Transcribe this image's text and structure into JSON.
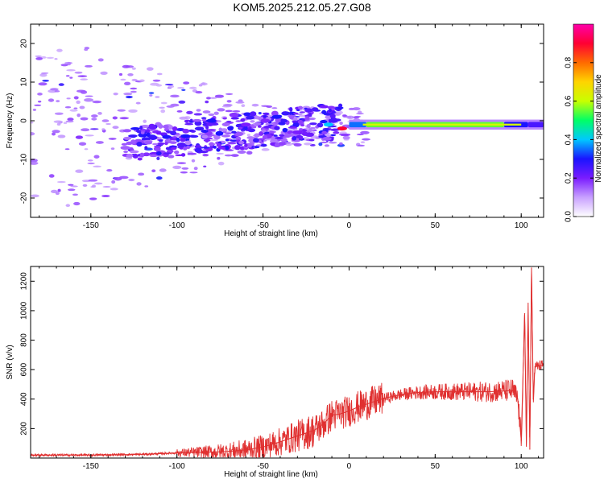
{
  "title": "KOM5.2025.212.05.27.G08",
  "chart_data": [
    {
      "type": "heatmap",
      "xlabel": "Height of straight line (km)",
      "ylabel": "Frequency (Hz)",
      "xlim": [
        -185,
        113
      ],
      "ylim": [
        -25,
        25
      ],
      "xticks": [
        -150,
        -100,
        -50,
        0,
        50,
        100
      ],
      "yticks": [
        -20,
        -10,
        0,
        10,
        20
      ],
      "colorbar": {
        "label": "Normalized spectral amplitude",
        "range": [
          0,
          1
        ],
        "ticks": [
          "0.0",
          "0.2",
          "0.4",
          "0.6",
          "0.8"
        ],
        "colors": [
          "#ffffff",
          "#c8a0ff",
          "#7a1cff",
          "#1a14ff",
          "#00c8ff",
          "#00ff66",
          "#c8ff00",
          "#ffd400",
          "#ff6a00",
          "#ff0033",
          "#ff00aa"
        ]
      },
      "main_band": {
        "x_start": 0,
        "x_end": 113,
        "frequency": -1,
        "note_segments": [
          {
            "x": [
              0,
              10
            ],
            "amplitude": 0.35
          },
          {
            "x": [
              10,
              90
            ],
            "amplitude": 0.55
          },
          {
            "x": [
              90,
              104
            ],
            "amplitude": 0.3
          },
          {
            "x": [
              104,
              113
            ],
            "amplitude": 0.25
          }
        ]
      },
      "features": [
        {
          "x": -95,
          "f": -4,
          "amplitude": 0.3
        },
        {
          "x": -80,
          "f": 0,
          "amplitude": 0.3
        },
        {
          "x": -60,
          "f": -1,
          "amplitude": 0.2
        },
        {
          "x": -42,
          "f": 1,
          "amplitude": 0.3
        },
        {
          "x": -30,
          "f": -3,
          "amplitude": 0.2
        },
        {
          "x": -12,
          "f": -1,
          "amplitude": 0.4
        },
        {
          "x": -4,
          "f": -2,
          "amplitude": 0.9
        },
        {
          "x": -130,
          "f": -7,
          "amplitude": 0.15
        }
      ]
    },
    {
      "type": "line",
      "xlabel": "Height of straight line (km)",
      "ylabel": "SNR (v/v)",
      "xlim": [
        -185,
        113
      ],
      "ylim": [
        0,
        1300
      ],
      "xticks": [
        -150,
        -100,
        -50,
        0,
        50,
        100
      ],
      "yticks": [
        200,
        400,
        600,
        800,
        1000,
        1200
      ],
      "series_color": "#e03030",
      "x": [
        -185,
        -150,
        -120,
        -100,
        -80,
        -70,
        -60,
        -50,
        -40,
        -30,
        -20,
        -15,
        -10,
        -5,
        0,
        5,
        10,
        15,
        20,
        30,
        40,
        50,
        60,
        70,
        80,
        90,
        95,
        98,
        100,
        102,
        103,
        104,
        105,
        106,
        107,
        108,
        110,
        113
      ],
      "values": [
        20,
        20,
        25,
        35,
        40,
        45,
        55,
        75,
        110,
        150,
        190,
        230,
        290,
        300,
        320,
        345,
        365,
        385,
        405,
        430,
        445,
        450,
        450,
        450,
        450,
        455,
        460,
        400,
        120,
        980,
        80,
        1050,
        60,
        1290,
        400,
        620,
        625,
        630
      ]
    }
  ]
}
